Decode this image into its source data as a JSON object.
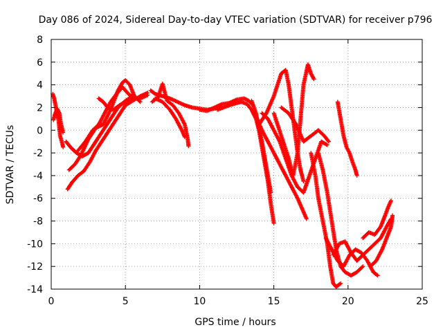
{
  "chart_data": {
    "type": "scatter",
    "title": "Day 086 of 2024, Sidereal Day-to-day VTEC variation (SDTVAR) for receiver p796",
    "xlabel": "GPS time / hours",
    "ylabel": "SDTVAR / TECUs",
    "xlim": [
      0,
      25
    ],
    "ylim": [
      -14,
      8
    ],
    "xticks": [
      "0",
      "5",
      "10",
      "15",
      "20",
      "25"
    ],
    "yticks": [
      "-14",
      "-12",
      "-10",
      "-8",
      "-6",
      "-4",
      "-2",
      "0",
      "2",
      "4",
      "6",
      "8"
    ],
    "grid": true,
    "legend": "none",
    "marker": "+",
    "color": "#ff0000",
    "series": [
      {
        "values": [
          [
            0.1,
            3.2
          ],
          [
            0.2,
            2.8
          ],
          [
            0.35,
            1.8
          ],
          [
            0.5,
            0.8
          ],
          [
            0.6,
            -0.5
          ],
          [
            0.75,
            -1.2
          ],
          [
            0.8,
            -1.5
          ]
        ]
      },
      {
        "values": [
          [
            0.15,
            0.9
          ],
          [
            0.25,
            1.4
          ],
          [
            0.4,
            1.9
          ],
          [
            0.55,
            1.5
          ],
          [
            0.65,
            0.6
          ],
          [
            0.8,
            -0.2
          ]
        ]
      },
      {
        "values": [
          [
            1.0,
            -1.0
          ],
          [
            1.3,
            -1.5
          ],
          [
            1.7,
            -2.0
          ],
          [
            2.1,
            -2.3
          ],
          [
            2.5,
            -2.0
          ],
          [
            3.0,
            -1.0
          ],
          [
            3.5,
            0.0
          ],
          [
            4.0,
            1.0
          ],
          [
            4.5,
            2.0
          ],
          [
            5.0,
            2.6
          ],
          [
            5.5,
            3.0
          ]
        ]
      },
      {
        "values": [
          [
            1.1,
            -5.2
          ],
          [
            1.4,
            -4.6
          ],
          [
            1.8,
            -4.0
          ],
          [
            2.2,
            -3.6
          ],
          [
            2.6,
            -2.8
          ],
          [
            3.0,
            -1.8
          ],
          [
            3.5,
            -0.8
          ],
          [
            4.0,
            0.2
          ],
          [
            4.5,
            1.2
          ],
          [
            5.0,
            2.2
          ],
          [
            5.5,
            2.6
          ],
          [
            6.0,
            3.0
          ],
          [
            6.5,
            3.3
          ]
        ]
      },
      {
        "values": [
          [
            1.2,
            -3.5
          ],
          [
            1.6,
            -3.0
          ],
          [
            2.0,
            -2.2
          ],
          [
            2.5,
            -0.8
          ],
          [
            3.0,
            0.2
          ],
          [
            3.5,
            0.5
          ],
          [
            4.0,
            1.8
          ],
          [
            4.5,
            3.5
          ],
          [
            4.8,
            4.2
          ],
          [
            5.0,
            4.4
          ],
          [
            5.3,
            4.0
          ],
          [
            5.6,
            3.0
          ],
          [
            6.0,
            2.5
          ]
        ]
      },
      {
        "values": [
          [
            1.8,
            -1.8
          ],
          [
            2.3,
            -1.0
          ],
          [
            2.8,
            0.0
          ],
          [
            3.2,
            0.5
          ],
          [
            3.6,
            1.5
          ],
          [
            4.0,
            2.5
          ],
          [
            4.4,
            3.2
          ],
          [
            4.8,
            3.8
          ],
          [
            5.2,
            3.2
          ],
          [
            5.6,
            2.8
          ]
        ]
      },
      {
        "values": [
          [
            3.2,
            2.8
          ],
          [
            3.5,
            2.5
          ],
          [
            3.8,
            2.0
          ],
          [
            4.2,
            1.8
          ],
          [
            4.6,
            2.2
          ],
          [
            5.0,
            2.5
          ],
          [
            5.5,
            2.8
          ],
          [
            6.0,
            2.8
          ],
          [
            6.5,
            3.1
          ]
        ]
      },
      {
        "values": [
          [
            6.7,
            3.5
          ],
          [
            7.0,
            3.2
          ],
          [
            7.5,
            3.0
          ],
          [
            8.0,
            2.8
          ],
          [
            8.5,
            2.5
          ],
          [
            9.0,
            2.2
          ],
          [
            9.5,
            2.0
          ],
          [
            10.0,
            1.9
          ],
          [
            10.5,
            1.8
          ],
          [
            11.0,
            1.9
          ],
          [
            11.5,
            2.0
          ]
        ]
      },
      {
        "values": [
          [
            6.8,
            2.5
          ],
          [
            7.2,
            2.9
          ],
          [
            7.5,
            4.1
          ],
          [
            7.8,
            2.6
          ],
          [
            8.2,
            2.2
          ],
          [
            8.6,
            1.5
          ],
          [
            9.0,
            0.5
          ],
          [
            9.2,
            -0.8
          ],
          [
            9.25,
            -1.4
          ]
        ]
      },
      {
        "values": [
          [
            7.0,
            2.8
          ],
          [
            7.5,
            2.5
          ],
          [
            8.0,
            1.8
          ],
          [
            8.4,
            1.0
          ],
          [
            8.8,
            0.0
          ],
          [
            9.0,
            -0.6
          ]
        ]
      },
      {
        "values": [
          [
            10.0,
            1.8
          ],
          [
            10.5,
            1.7
          ],
          [
            11.0,
            2.0
          ],
          [
            11.5,
            2.3
          ],
          [
            12.0,
            2.4
          ],
          [
            12.5,
            2.7
          ],
          [
            13.0,
            2.8
          ],
          [
            13.3,
            2.6
          ],
          [
            13.6,
            2.2
          ]
        ]
      },
      {
        "values": [
          [
            11.2,
            1.8
          ],
          [
            11.6,
            2.0
          ],
          [
            12.0,
            2.2
          ],
          [
            12.5,
            2.4
          ],
          [
            12.8,
            2.5
          ],
          [
            13.2,
            2.3
          ],
          [
            13.5,
            1.8
          ],
          [
            13.8,
            1.0
          ],
          [
            14.0,
            0.0
          ],
          [
            14.2,
            -1.5
          ],
          [
            14.4,
            -3.0
          ],
          [
            14.6,
            -4.5
          ],
          [
            14.8,
            -6.5
          ],
          [
            15.0,
            -8.2
          ]
        ]
      },
      {
        "values": [
          [
            13.5,
            2.6
          ],
          [
            13.8,
            1.5
          ],
          [
            14.0,
            0.2
          ],
          [
            14.2,
            -1.0
          ],
          [
            14.4,
            -2.5
          ],
          [
            14.6,
            -4.0
          ],
          [
            14.8,
            -5.5
          ]
        ]
      },
      {
        "values": [
          [
            13.8,
            1.2
          ],
          [
            14.2,
            0.0
          ],
          [
            14.6,
            -1.0
          ],
          [
            15.0,
            -2.0
          ],
          [
            15.4,
            -3.0
          ],
          [
            15.8,
            -4.0
          ],
          [
            16.2,
            -5.0
          ],
          [
            16.6,
            -6.0
          ],
          [
            17.0,
            -7.2
          ],
          [
            17.2,
            -7.8
          ]
        ]
      },
      {
        "values": [
          [
            14.2,
            1.5
          ],
          [
            14.6,
            1.0
          ],
          [
            15.0,
            0.0
          ],
          [
            15.4,
            -1.0
          ],
          [
            15.8,
            -2.5
          ],
          [
            16.2,
            -4.0
          ],
          [
            16.6,
            -5.0
          ],
          [
            17.0,
            -5.5
          ],
          [
            17.4,
            -4.0
          ],
          [
            17.8,
            -2.5
          ],
          [
            18.2,
            -1.0
          ],
          [
            18.6,
            -1.3
          ]
        ]
      },
      {
        "values": [
          [
            14.0,
            0.5
          ],
          [
            14.5,
            1.5
          ],
          [
            15.0,
            3.0
          ],
          [
            15.3,
            4.2
          ],
          [
            15.5,
            5.0
          ],
          [
            15.8,
            5.3
          ],
          [
            16.0,
            4.0
          ],
          [
            16.2,
            2.0
          ],
          [
            16.4,
            0.0
          ],
          [
            16.6,
            -2.0
          ],
          [
            16.8,
            -3.5
          ],
          [
            17.0,
            -4.5
          ]
        ]
      },
      {
        "values": [
          [
            15.0,
            1.5
          ],
          [
            15.5,
            -0.5
          ],
          [
            16.0,
            -2.5
          ],
          [
            16.3,
            -4.0
          ],
          [
            16.6,
            -2.0
          ],
          [
            16.8,
            1.0
          ],
          [
            17.0,
            4.0
          ],
          [
            17.2,
            5.2
          ],
          [
            17.3,
            5.8
          ],
          [
            17.5,
            5.0
          ],
          [
            17.7,
            4.5
          ]
        ]
      },
      {
        "values": [
          [
            15.5,
            2.0
          ],
          [
            16.0,
            1.5
          ],
          [
            16.5,
            0.5
          ],
          [
            17.0,
            -1.0
          ],
          [
            17.5,
            -0.5
          ],
          [
            18.0,
            0.0
          ],
          [
            18.4,
            -0.5
          ],
          [
            18.7,
            -1.0
          ]
        ]
      },
      {
        "values": [
          [
            17.5,
            -2.0
          ],
          [
            17.8,
            -4.0
          ],
          [
            18.0,
            -6.0
          ],
          [
            18.3,
            -8.0
          ],
          [
            18.6,
            -10.0
          ],
          [
            18.8,
            -12.0
          ],
          [
            19.0,
            -13.5
          ],
          [
            19.2,
            -13.8
          ],
          [
            19.5,
            -13.5
          ]
        ]
      },
      {
        "values": [
          [
            18.0,
            -2.0
          ],
          [
            18.3,
            -3.5
          ],
          [
            18.6,
            -5.5
          ],
          [
            18.9,
            -8.0
          ],
          [
            19.2,
            -10.5
          ],
          [
            19.5,
            -12.0
          ],
          [
            19.8,
            -12.5
          ],
          [
            20.2,
            -12.8
          ],
          [
            20.6,
            -12.5
          ],
          [
            21.0,
            -12.0
          ]
        ]
      },
      {
        "values": [
          [
            18.5,
            -9.5
          ],
          [
            18.9,
            -10.5
          ],
          [
            19.3,
            -11.5
          ],
          [
            19.7,
            -12.0
          ],
          [
            20.1,
            -11.0
          ],
          [
            20.5,
            -10.5
          ],
          [
            20.9,
            -10.8
          ],
          [
            21.3,
            -11.5
          ],
          [
            21.7,
            -12.5
          ],
          [
            22.0,
            -12.8
          ]
        ]
      },
      {
        "values": [
          [
            19.0,
            -11.0
          ],
          [
            19.4,
            -10.0
          ],
          [
            19.8,
            -9.8
          ],
          [
            20.2,
            -10.8
          ],
          [
            20.6,
            -11.5
          ],
          [
            21.0,
            -11.0
          ],
          [
            21.4,
            -10.5
          ],
          [
            21.8,
            -10.0
          ],
          [
            22.2,
            -9.5
          ],
          [
            22.6,
            -8.5
          ],
          [
            22.9,
            -7.8
          ]
        ]
      },
      {
        "values": [
          [
            21.0,
            -9.5
          ],
          [
            21.4,
            -9.0
          ],
          [
            21.8,
            -9.2
          ],
          [
            22.2,
            -8.5
          ],
          [
            22.5,
            -7.5
          ],
          [
            22.7,
            -6.8
          ],
          [
            22.9,
            -6.2
          ]
        ]
      },
      {
        "values": [
          [
            21.5,
            -12.0
          ],
          [
            21.9,
            -11.5
          ],
          [
            22.3,
            -10.5
          ],
          [
            22.6,
            -9.5
          ],
          [
            22.9,
            -8.5
          ],
          [
            23.0,
            -7.5
          ]
        ]
      },
      {
        "values": [
          [
            19.3,
            2.5
          ],
          [
            19.5,
            1.0
          ],
          [
            19.7,
            -0.5
          ],
          [
            19.9,
            -1.5
          ],
          [
            20.1,
            -2.0
          ],
          [
            20.3,
            -2.8
          ],
          [
            20.5,
            -3.5
          ],
          [
            20.6,
            -4.0
          ]
        ]
      }
    ]
  }
}
